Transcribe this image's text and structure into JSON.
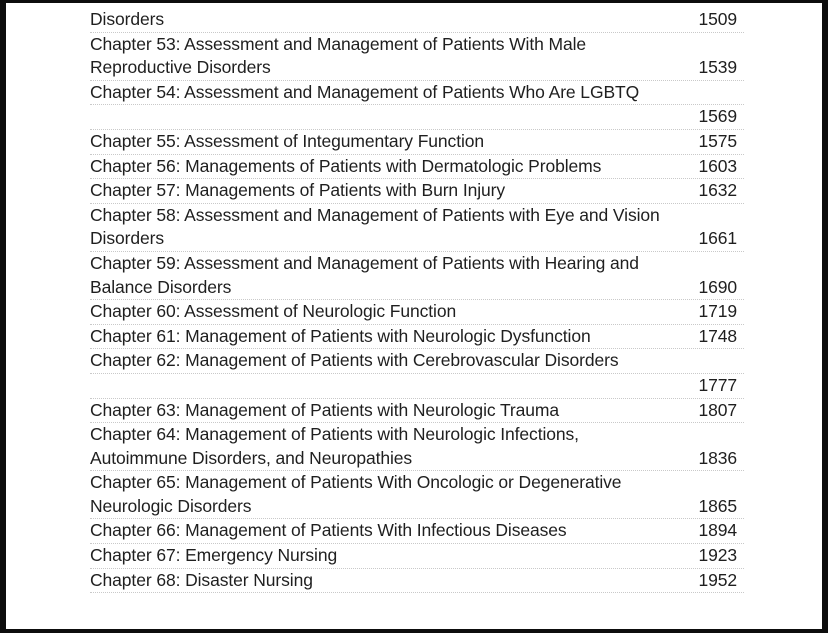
{
  "colors": {
    "text": "#1f1f1f",
    "divider": "#c9c9c9",
    "page_background": "#ffffff",
    "frame": "#0d0d0d"
  },
  "toc": {
    "rows": [
      {
        "lines": [
          "Disorders"
        ],
        "page": "1509"
      },
      {
        "lines": [
          "Chapter 53: Assessment and Management of Patients With Male",
          "Reproductive Disorders"
        ],
        "page": "1539"
      },
      {
        "lines": [
          "Chapter 54: Assessment and Management of Patients Who Are LGBTQ"
        ],
        "page": ""
      },
      {
        "lines": [],
        "page": "1569"
      },
      {
        "lines": [
          "Chapter 55: Assessment of Integumentary Function"
        ],
        "page": "1575"
      },
      {
        "lines": [
          "Chapter 56: Managements of Patients with Dermatologic Problems"
        ],
        "page": "1603"
      },
      {
        "lines": [
          "Chapter 57: Managements of Patients with Burn Injury"
        ],
        "page": "1632"
      },
      {
        "lines": [
          "Chapter 58: Assessment and Management of Patients with Eye and Vision",
          "Disorders"
        ],
        "page": "1661"
      },
      {
        "lines": [
          "Chapter 59: Assessment and Management of Patients with Hearing and",
          "Balance Disorders"
        ],
        "page": "1690"
      },
      {
        "lines": [
          "Chapter 60: Assessment of Neurologic Function"
        ],
        "page": "1719"
      },
      {
        "lines": [
          "Chapter 61: Management of Patients with Neurologic Dysfunction"
        ],
        "page": "1748"
      },
      {
        "lines": [
          "Chapter 62: Management of Patients with Cerebrovascular Disorders"
        ],
        "page": ""
      },
      {
        "lines": [],
        "page": "1777"
      },
      {
        "lines": [
          "Chapter 63: Management of Patients with Neurologic Trauma"
        ],
        "page": "1807"
      },
      {
        "lines": [
          "Chapter 64: Management of Patients with Neurologic Infections,",
          "Autoimmune Disorders, and Neuropathies"
        ],
        "page": "1836"
      },
      {
        "lines": [
          "Chapter 65: Management of Patients With Oncologic or Degenerative",
          "Neurologic Disorders"
        ],
        "page": "1865"
      },
      {
        "lines": [
          "Chapter 66: Management of Patients With Infectious Diseases"
        ],
        "page": "1894"
      },
      {
        "lines": [
          "Chapter 67: Emergency Nursing"
        ],
        "page": "1923"
      },
      {
        "lines": [
          "Chapter 68: Disaster Nursing"
        ],
        "page": "1952"
      }
    ]
  }
}
